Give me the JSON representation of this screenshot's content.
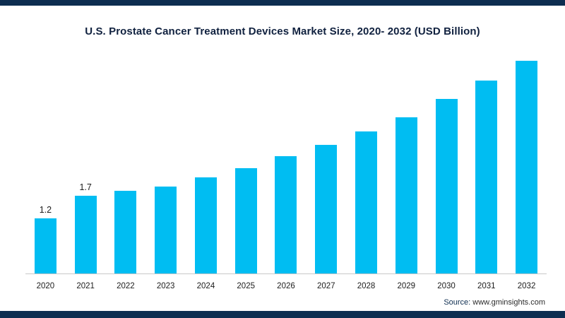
{
  "page": {
    "background_color": "#ffffff",
    "accent_border_color": "#0d2d50"
  },
  "chart_data": {
    "type": "bar",
    "title": "U.S. Prostate Cancer Treatment Devices Market Size, 2020- 2032 (USD Billion)",
    "categories": [
      "2020",
      "2021",
      "2022",
      "2023",
      "2024",
      "2025",
      "2026",
      "2027",
      "2028",
      "2029",
      "2030",
      "2031",
      "2032"
    ],
    "values": [
      1.2,
      1.7,
      1.8,
      1.9,
      2.1,
      2.3,
      2.55,
      2.8,
      3.1,
      3.4,
      3.8,
      4.2,
      4.65
    ],
    "data_labels": [
      "1.2",
      "1.7",
      "",
      "",
      "",
      "",
      "",
      "",
      "",
      "",
      "",
      "",
      ""
    ],
    "bar_color": "#00bdf2",
    "xlabel": "",
    "ylabel": "",
    "ylim": [
      0,
      5
    ],
    "grid": false,
    "legend_position": "none",
    "y_axis_visible": false,
    "x_axis_visible": true
  },
  "footer": {
    "source_label": "Source:",
    "source_value": " www.gminsights.com"
  }
}
